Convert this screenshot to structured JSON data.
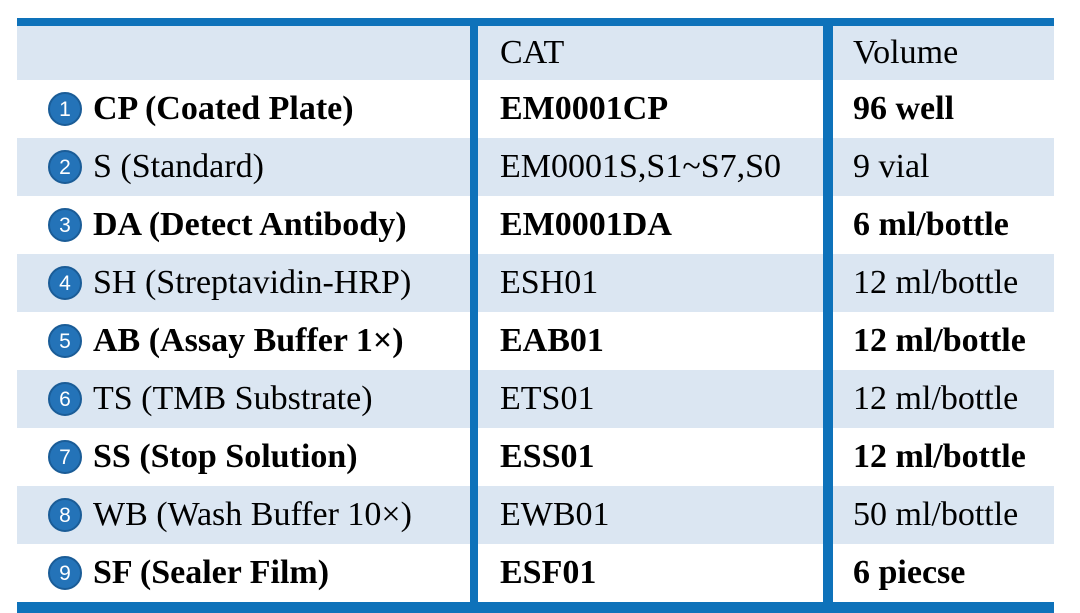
{
  "colors": {
    "accent_blue": "#0e72ba",
    "band_blue": "#dbe6f2",
    "circle_blue": "#2473b8",
    "circle_rim_blue": "#1a5c97",
    "text": "#000000"
  },
  "table": {
    "columns": [
      {
        "key": "component",
        "label": ""
      },
      {
        "key": "cat",
        "label": "CAT"
      },
      {
        "key": "volume",
        "label": "Volume"
      }
    ],
    "rows": [
      {
        "num": "1",
        "label": "CP (Coated Plate)",
        "cat": "EM0001CP",
        "volume": "96 well",
        "bold": true
      },
      {
        "num": "2",
        "label": "S (Standard)",
        "cat": "EM0001S,S1~S7,S0",
        "volume": "9 vial",
        "bold": false
      },
      {
        "num": "3",
        "label": "DA (Detect Antibody)",
        "cat": "EM0001DA",
        "volume": "6 ml/bottle",
        "bold": true
      },
      {
        "num": "4",
        "label": "SH (Streptavidin-HRP)",
        "cat": "ESH01",
        "volume": "12 ml/bottle",
        "bold": false
      },
      {
        "num": "5",
        "label": "AB (Assay Buffer 1×)",
        "cat": "EAB01",
        "volume": "12 ml/bottle",
        "bold": true
      },
      {
        "num": "6",
        "label": "TS (TMB Substrate)",
        "cat": "ETS01",
        "volume": "12 ml/bottle",
        "bold": false
      },
      {
        "num": "7",
        "label": "SS (Stop Solution)",
        "cat": "ESS01",
        "volume": "12 ml/bottle",
        "bold": true
      },
      {
        "num": "8",
        "label": "WB (Wash Buffer 10×)",
        "cat": "EWB01",
        "volume": "50 ml/bottle",
        "bold": false
      },
      {
        "num": "9",
        "label": "SF (Sealer Film)",
        "cat": "ESF01",
        "volume": "6 piecse",
        "bold": true
      }
    ]
  }
}
